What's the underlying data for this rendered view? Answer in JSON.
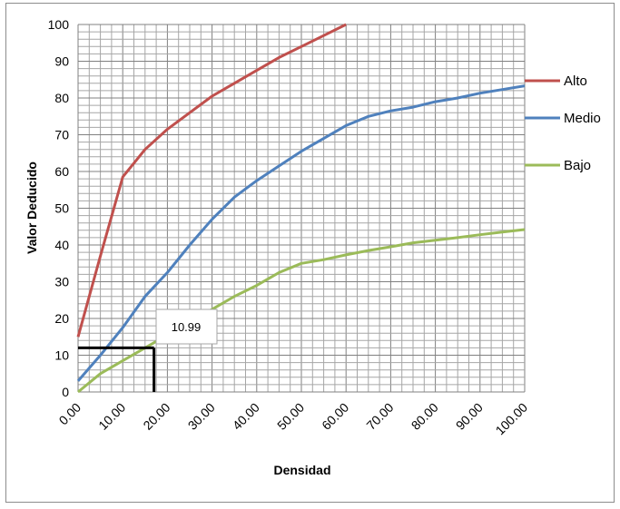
{
  "chart_data": {
    "type": "line",
    "title": "",
    "xlabel": "Densidad",
    "ylabel": "Valor Deducido",
    "xlim": [
      0,
      100
    ],
    "ylim": [
      0,
      100
    ],
    "x_ticks": [
      0,
      10,
      20,
      30,
      40,
      50,
      60,
      70,
      80,
      90,
      100
    ],
    "x_tick_labels": [
      "0.00",
      "10.00",
      "20.00",
      "30.00",
      "40.00",
      "50.00",
      "60.00",
      "70.00",
      "80.00",
      "90.00",
      "100.00"
    ],
    "y_ticks": [
      0,
      10,
      20,
      30,
      40,
      50,
      60,
      70,
      80,
      90,
      100
    ],
    "y_tick_labels": [
      "0",
      "10",
      "20",
      "30",
      "40",
      "50",
      "60",
      "70",
      "80",
      "90",
      "100"
    ],
    "grid": true,
    "legend_position": "right",
    "series": [
      {
        "name": "Alto",
        "color": "#c0504d",
        "points": [
          [
            0,
            15
          ],
          [
            5,
            37
          ],
          [
            10,
            58.5
          ],
          [
            15,
            66
          ],
          [
            20,
            71.5
          ],
          [
            25,
            76
          ],
          [
            30,
            80.5
          ],
          [
            35,
            84
          ],
          [
            40,
            87.5
          ],
          [
            45,
            91
          ],
          [
            50,
            94
          ],
          [
            55,
            97
          ],
          [
            60,
            100
          ]
        ]
      },
      {
        "name": "Medio",
        "color": "#4f81bd",
        "points": [
          [
            0,
            3
          ],
          [
            5,
            10
          ],
          [
            10,
            17.5
          ],
          [
            15,
            26
          ],
          [
            20,
            32.5
          ],
          [
            25,
            40
          ],
          [
            30,
            47
          ],
          [
            35,
            53
          ],
          [
            40,
            57.5
          ],
          [
            45,
            61.5
          ],
          [
            50,
            65.5
          ],
          [
            55,
            69
          ],
          [
            60,
            72.5
          ],
          [
            65,
            75
          ],
          [
            70,
            76.5
          ],
          [
            75,
            77.5
          ],
          [
            80,
            79
          ],
          [
            85,
            80
          ],
          [
            90,
            81.3
          ],
          [
            95,
            82.3
          ],
          [
            100,
            83.3
          ]
        ]
      },
      {
        "name": "Bajo",
        "color": "#9bbb59",
        "points": [
          [
            0,
            0
          ],
          [
            5,
            5
          ],
          [
            10,
            8.5
          ],
          [
            15,
            12
          ],
          [
            20,
            15.5
          ],
          [
            25,
            19
          ],
          [
            30,
            22.5
          ],
          [
            35,
            26
          ],
          [
            40,
            29
          ],
          [
            45,
            32.5
          ],
          [
            50,
            35
          ],
          [
            55,
            36
          ],
          [
            60,
            37.3
          ],
          [
            65,
            38.5
          ],
          [
            70,
            39.5
          ],
          [
            75,
            40.6
          ],
          [
            80,
            41.3
          ],
          [
            85,
            42
          ],
          [
            90,
            42.8
          ],
          [
            95,
            43.5
          ],
          [
            100,
            44.2
          ]
        ]
      }
    ],
    "annotation": {
      "label": "10.99",
      "point": [
        17,
        12
      ]
    }
  }
}
